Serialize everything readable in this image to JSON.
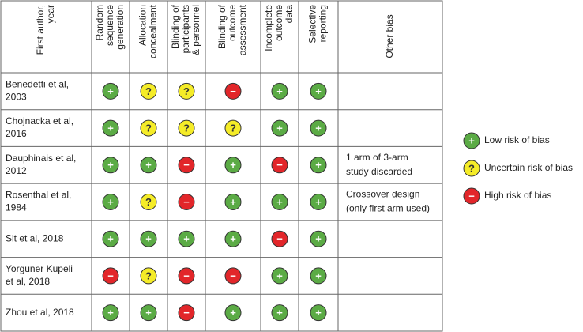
{
  "table": {
    "headers": [
      [
        "First author,",
        "year"
      ],
      [
        "Random",
        "sequence",
        "generation"
      ],
      [
        "Allocation",
        "concealment"
      ],
      [
        "Blinding of",
        "participants",
        "& personnel"
      ],
      [
        "Blinding of",
        "outcome",
        "assessment"
      ],
      [
        "Incomplete",
        "outcome",
        "data"
      ],
      [
        "Selective",
        "reporting"
      ],
      [
        "Other bias"
      ]
    ],
    "rows": [
      {
        "author": [
          "Benedetti et al,",
          "2003"
        ],
        "ratings": [
          "+",
          "?",
          "?",
          "−",
          "+",
          "+"
        ],
        "other": []
      },
      {
        "author": [
          "Chojnacka et al,",
          "2016"
        ],
        "ratings": [
          "+",
          "?",
          "?",
          "?",
          "+",
          "+"
        ],
        "other": []
      },
      {
        "author": [
          "Dauphinais et al,",
          "2012"
        ],
        "ratings": [
          "+",
          "+",
          "−",
          "+",
          "−",
          "+"
        ],
        "other": [
          "1 arm of 3-arm",
          "study discarded"
        ]
      },
      {
        "author": [
          "Rosenthal et al,",
          "1984"
        ],
        "ratings": [
          "+",
          "?",
          "−",
          "+",
          "+",
          "+"
        ],
        "other": [
          "Crossover design",
          "(only first arm used)"
        ]
      },
      {
        "author": [
          "Sit et al, 2018"
        ],
        "ratings": [
          "+",
          "+",
          "+",
          "+",
          "−",
          "+"
        ],
        "other": []
      },
      {
        "author": [
          "Yorguner Kupeli",
          "et al, 2018"
        ],
        "ratings": [
          "−",
          "?",
          "−",
          "−",
          "+",
          "+"
        ],
        "other": []
      },
      {
        "author": [
          "Zhou et al, 2018"
        ],
        "ratings": [
          "+",
          "+",
          "−",
          "+",
          "+",
          "+"
        ],
        "other": []
      }
    ]
  },
  "legend": [
    {
      "symbol": "+",
      "label": "Low risk of bias",
      "color": "#5bab45",
      "text": "#ffffff"
    },
    {
      "symbol": "?",
      "label": "Uncertain risk of bias",
      "color": "#f5ec28",
      "text": "#333333"
    },
    {
      "symbol": "−",
      "label": "High risk of bias",
      "color": "#e2262a",
      "text": "#ffffff"
    }
  ]
}
